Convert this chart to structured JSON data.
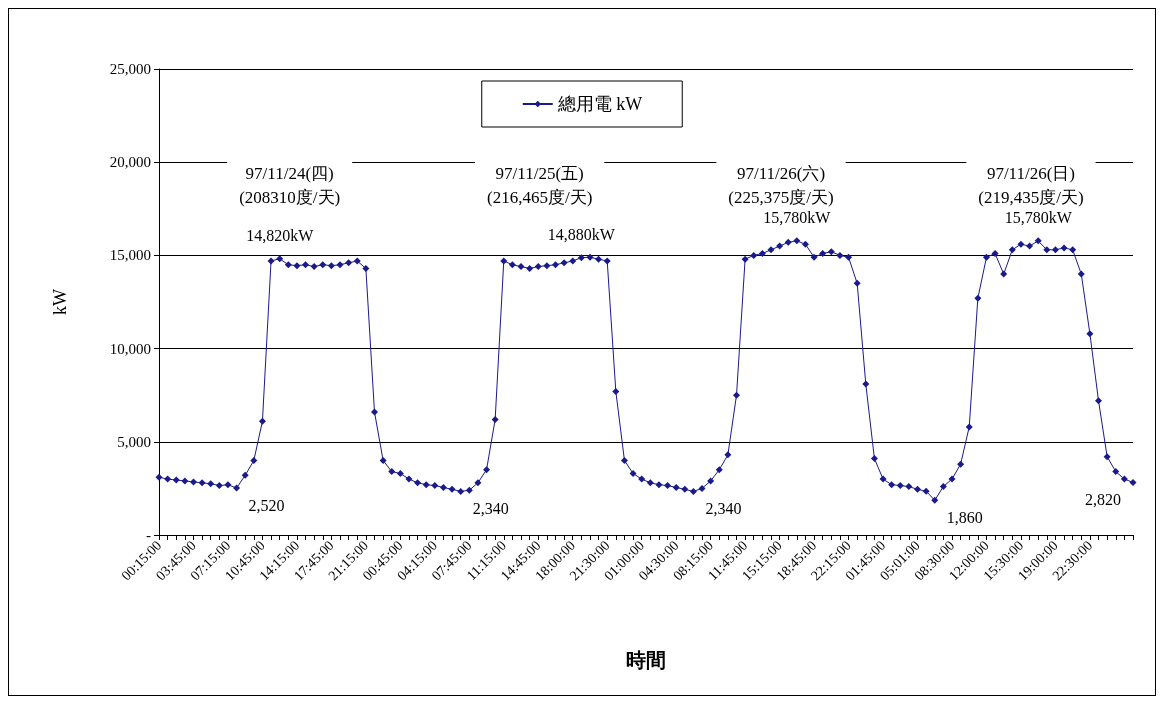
{
  "chart_data": {
    "type": "line",
    "xlabel": "時間",
    "ylabel": "kW",
    "categories": [
      "00:15:00",
      null,
      null,
      null,
      "03:45:00",
      null,
      null,
      null,
      "07:15:00",
      null,
      null,
      null,
      "10:45:00",
      null,
      null,
      null,
      "14:15:00",
      null,
      null,
      null,
      "17:45:00",
      null,
      null,
      null,
      "21:15:00",
      null,
      null,
      null,
      "00:45:00",
      null,
      null,
      null,
      "04:15:00",
      null,
      null,
      null,
      "07:45:00",
      null,
      null,
      null,
      "11:15:00",
      null,
      null,
      null,
      "14:45:00",
      null,
      null,
      null,
      "18:00:00",
      null,
      null,
      null,
      "21:30:00",
      null,
      null,
      null,
      "01:00:00",
      null,
      null,
      null,
      "04:30:00",
      null,
      null,
      null,
      "08:15:00",
      null,
      null,
      null,
      "11:45:00",
      null,
      null,
      null,
      "15:15:00",
      null,
      null,
      null,
      "18:45:00",
      null,
      null,
      null,
      "22:15:00",
      null,
      null,
      null,
      "01:45:00",
      null,
      null,
      null,
      "05:01:00",
      null,
      null,
      null,
      "08:30:00",
      null,
      null,
      null,
      "12:00:00",
      null,
      null,
      null,
      "15:30:00",
      null,
      null,
      null,
      "19:00:00",
      null,
      null,
      null,
      "22:30:00",
      null,
      null,
      null,
      null,
      null
    ],
    "series": [
      {
        "name": "總用電 kW",
        "color": "#1a1a8c",
        "values": [
          3100,
          3000,
          2950,
          2900,
          2850,
          2800,
          2750,
          2650,
          2700,
          2520,
          3200,
          4000,
          6100,
          14700,
          14820,
          14500,
          14450,
          14500,
          14400,
          14500,
          14450,
          14500,
          14600,
          14700,
          14300,
          6600,
          4000,
          3400,
          3300,
          3000,
          2800,
          2700,
          2650,
          2550,
          2450,
          2340,
          2400,
          2800,
          3500,
          6200,
          14700,
          14500,
          14400,
          14300,
          14400,
          14450,
          14500,
          14600,
          14700,
          14880,
          14900,
          14800,
          14700,
          7700,
          4000,
          3300,
          3000,
          2800,
          2700,
          2650,
          2550,
          2450,
          2340,
          2500,
          2900,
          3500,
          4300,
          7500,
          14800,
          15000,
          15100,
          15300,
          15500,
          15700,
          15780,
          15600,
          14900,
          15100,
          15200,
          15000,
          14900,
          13500,
          8100,
          4100,
          3000,
          2700,
          2650,
          2600,
          2450,
          2350,
          1860,
          2600,
          3000,
          3800,
          5800,
          12700,
          14900,
          15100,
          14000,
          15300,
          15600,
          15500,
          15780,
          15300,
          15300,
          15400,
          15300,
          14000,
          10800,
          7200,
          4200,
          3400,
          3000,
          2820
        ],
        "value_labels": [
          null,
          null,
          null,
          null,
          null,
          null,
          null,
          null,
          null,
          "2,520",
          null,
          null,
          null,
          null,
          "14,820kW",
          null,
          null,
          null,
          null,
          null,
          null,
          null,
          null,
          null,
          null,
          null,
          null,
          null,
          null,
          null,
          null,
          null,
          null,
          null,
          null,
          "2,340",
          null,
          null,
          null,
          null,
          null,
          null,
          null,
          null,
          null,
          null,
          null,
          null,
          null,
          "14,880kW",
          null,
          null,
          null,
          null,
          null,
          null,
          null,
          null,
          null,
          null,
          null,
          null,
          "2,340",
          null,
          null,
          null,
          null,
          null,
          null,
          null,
          null,
          null,
          null,
          null,
          "15,780kW",
          null,
          null,
          null,
          null,
          null,
          null,
          null,
          null,
          null,
          null,
          null,
          null,
          null,
          null,
          null,
          "1,860",
          null,
          null,
          null,
          null,
          null,
          null,
          null,
          null,
          null,
          null,
          null,
          "15,780kW",
          null,
          null,
          null,
          null,
          null,
          null,
          null,
          null,
          null,
          null,
          "2,820"
        ]
      }
    ],
    "annotations": [
      "97/11/24(四)\n(208310度/天)",
      "97/11/25(五)\n(216,465度/天)",
      "97/11/26(六)\n(225,375度/天)",
      "97/11/26(日)\n(219,435度/天)"
    ],
    "ylim": [
      0,
      25000
    ],
    "yticks": [
      {
        "value": 0,
        "label": "-"
      },
      {
        "value": 5000,
        "label": "5,000"
      },
      {
        "value": 10000,
        "label": "10,000"
      },
      {
        "value": 15000,
        "label": "15,000"
      },
      {
        "value": 20000,
        "label": "20,000"
      },
      {
        "value": 25000,
        "label": "25,000"
      }
    ],
    "grid": "y",
    "legend": "top",
    "marker": "diamond",
    "line_style": "solid"
  }
}
